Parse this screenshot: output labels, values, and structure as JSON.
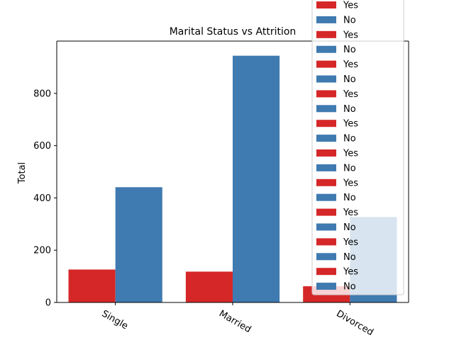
{
  "chart_data": {
    "type": "bar",
    "title": "Marital Status vs Attrition",
    "xlabel": "",
    "ylabel": "Total",
    "categories": [
      "Single",
      "Married",
      "Divorced"
    ],
    "series": [
      {
        "name": "Yes",
        "color": "#d62728",
        "values": [
          126,
          118,
          62
        ]
      },
      {
        "name": "No",
        "color": "#3f7ab0",
        "values": [
          441,
          944,
          327
        ]
      }
    ],
    "ylim": [
      0,
      1000
    ],
    "yticks": [
      0,
      200,
      400,
      600,
      800
    ],
    "legend": {
      "placement": "top-right",
      "entries": [
        "Yes",
        "No",
        "Yes",
        "No",
        "Yes",
        "No",
        "Yes",
        "No",
        "Yes",
        "No",
        "Yes",
        "No",
        "Yes",
        "No",
        "Yes",
        "No",
        "Yes",
        "No",
        "Yes",
        "No"
      ]
    }
  }
}
